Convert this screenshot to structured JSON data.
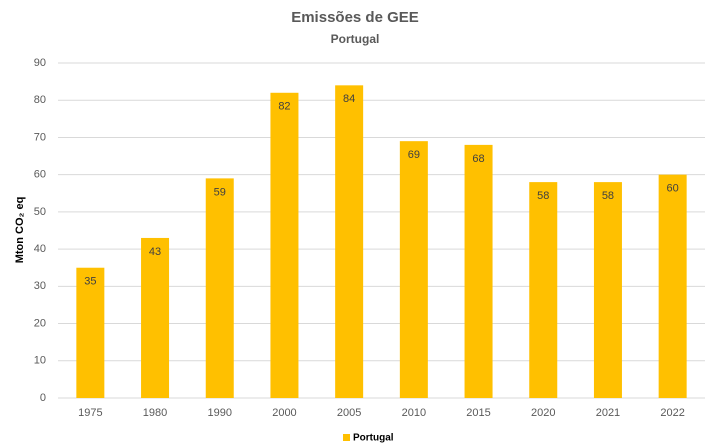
{
  "chart_data": {
    "type": "bar",
    "title": "Emissões de GEE",
    "subtitle": "Portugal",
    "y_label": "Mton CO₂ eq",
    "categories": [
      "1975",
      "1980",
      "1990",
      "2000",
      "2005",
      "2010",
      "2015",
      "2020",
      "2021",
      "2022"
    ],
    "series": [
      {
        "name": "Portugal",
        "color": "#ffc000",
        "values": [
          35,
          43,
          59,
          82,
          84,
          69,
          68,
          58,
          58,
          60
        ]
      }
    ],
    "ylim": [
      0,
      90
    ],
    "yticks": [
      0,
      10,
      20,
      30,
      40,
      50,
      60,
      70,
      80,
      90
    ],
    "grid": true,
    "legend": "bottom"
  }
}
